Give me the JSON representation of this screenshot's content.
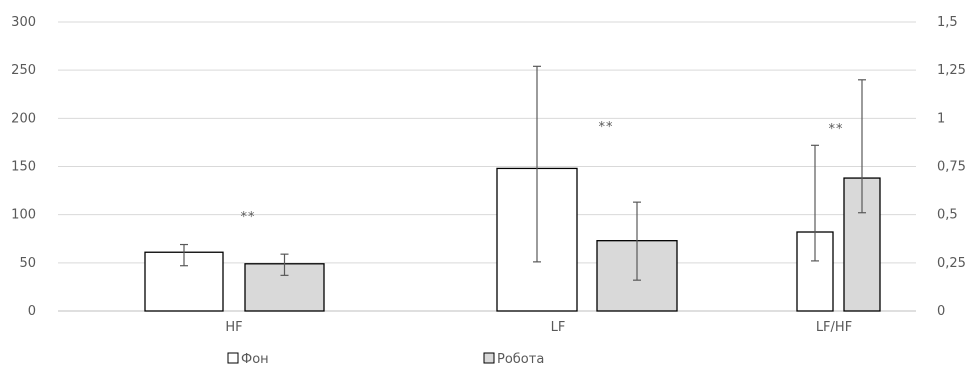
{
  "chart_data": {
    "type": "bar",
    "title": "",
    "categories": [
      "HF",
      "LF",
      "LF/HF"
    ],
    "series": [
      {
        "name": "Фон",
        "color": "#ffffff",
        "values": [
          61,
          148,
          0.41
        ],
        "err_low": [
          47,
          51,
          0.26
        ],
        "err_high": [
          69,
          254,
          0.86
        ]
      },
      {
        "name": "Робота",
        "color": "#d9d9d9",
        "values": [
          49,
          73,
          0.69
        ],
        "err_low": [
          37,
          32,
          0.51
        ],
        "err_high": [
          59,
          113,
          1.2
        ]
      }
    ],
    "value_axis": [
      "left",
      "left",
      "right"
    ],
    "annotations": [
      "**",
      "**",
      "**"
    ],
    "y_left": {
      "min": 0,
      "max": 300,
      "ticks": [
        "0",
        "50",
        "100",
        "150",
        "200",
        "250",
        "300"
      ]
    },
    "y_right": {
      "min": 0,
      "max": 1.5,
      "ticks": [
        "0",
        "0,25",
        "0,5",
        "0,75",
        "1",
        "1,25",
        "1,5"
      ]
    },
    "grid": true,
    "legend": {
      "position": "bottom-left",
      "items": [
        "Фон",
        "Робота"
      ]
    }
  }
}
